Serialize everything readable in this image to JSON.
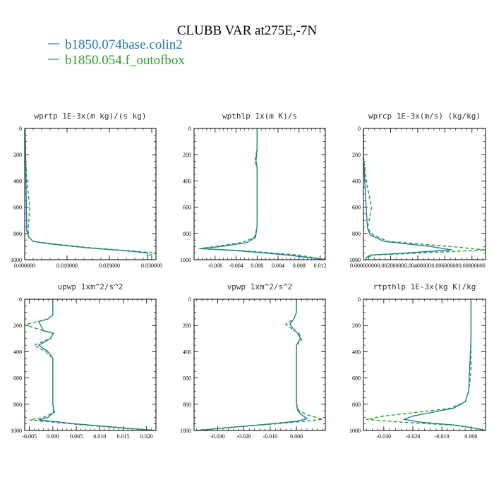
{
  "figure": {
    "title": "CLUBB VAR at275E,-7N",
    "legend": [
      {
        "name": "b1850.074base.colin2",
        "color": "#1f77b4",
        "style": "solid"
      },
      {
        "name": "b1850.054.f_outofbox",
        "color": "#2ca02c",
        "style": "dashed"
      }
    ]
  },
  "chart_data": [
    {
      "type": "line",
      "title": "wprtp  1E-3x(m kg)/(s kg)",
      "xlim": [
        0.0,
        0.031
      ],
      "ylim": [
        1000,
        0
      ],
      "xticks": [
        0.0,
        0.01,
        0.02,
        0.03
      ],
      "xtick_labels": [
        "0.000000",
        "0.010000",
        "0.020000",
        "0.030000"
      ],
      "yticks": [
        0,
        200,
        400,
        600,
        800,
        1000
      ],
      "ytick_labels": [
        "0",
        "200",
        "400",
        "600",
        "800",
        "1000"
      ],
      "series": [
        {
          "color": "#1f77b4",
          "dash": false,
          "x": [
            0.0001,
            0.0002,
            0.0003,
            0.0004,
            0.0005,
            0.001,
            0.002,
            0.006,
            0.015,
            0.025,
            0.029,
            0.029,
            0.029
          ],
          "y": [
            0,
            200,
            400,
            600,
            780,
            830,
            860,
            880,
            910,
            935,
            950,
            970,
            1000
          ]
        },
        {
          "color": "#2ca02c",
          "dash": true,
          "x": [
            0.0001,
            0.0002,
            0.0005,
            0.0012,
            0.0008,
            0.001,
            0.002,
            0.007,
            0.016,
            0.026,
            0.031,
            0.029,
            0.029
          ],
          "y": [
            0,
            200,
            400,
            600,
            780,
            830,
            860,
            880,
            910,
            935,
            950,
            970,
            1000
          ]
        }
      ]
    },
    {
      "type": "line",
      "title": "wpthlp  1x(m K)/s",
      "xlim": [
        -0.012,
        0.013
      ],
      "ylim": [
        1000,
        0
      ],
      "xticks": [
        -0.008,
        -0.004,
        0.0,
        0.004,
        0.008,
        0.012
      ],
      "xtick_labels": [
        "-0.008",
        "-0.004",
        "0.000",
        "0.004",
        "0.008",
        "0.012"
      ],
      "yticks": [
        0,
        200,
        400,
        600,
        800,
        1000
      ],
      "ytick_labels": [
        "0",
        "200",
        "400",
        "600",
        "800",
        "1000"
      ],
      "series": [
        {
          "color": "#1f77b4",
          "dash": false,
          "x": [
            0.0,
            0.0,
            -0.0002,
            0.0,
            0.0,
            0.0,
            -0.0003,
            -0.002,
            -0.007,
            -0.011,
            -0.004,
            0.006,
            0.013
          ],
          "y": [
            0,
            150,
            250,
            300,
            500,
            750,
            830,
            870,
            900,
            915,
            930,
            965,
            1000
          ]
        },
        {
          "color": "#2ca02c",
          "dash": true,
          "x": [
            0.0,
            0.0,
            -0.0004,
            0.0,
            0.0,
            0.0,
            -0.0005,
            -0.003,
            -0.008,
            -0.011,
            -0.003,
            0.008,
            0.013
          ],
          "y": [
            0,
            150,
            250,
            300,
            500,
            750,
            830,
            870,
            900,
            915,
            930,
            965,
            1000
          ]
        }
      ]
    },
    {
      "type": "line",
      "title": "wprcp  1E-3x(m/s) (kg/kg)",
      "xlim": [
        0.0,
        0.009
      ],
      "ylim": [
        1000,
        0
      ],
      "xticks": [
        0.0,
        0.002,
        0.004,
        0.006,
        0.008
      ],
      "xtick_labels": [
        "0.00000000",
        "0.00200000",
        "0.00400000",
        "0.00600000",
        "0.00800000"
      ],
      "yticks": [
        0,
        200,
        400,
        600,
        800,
        1000
      ],
      "ytick_labels": [
        "0",
        "200",
        "400",
        "600",
        "800",
        "1000"
      ],
      "series": [
        {
          "color": "#1f77b4",
          "dash": false,
          "x": [
            0.0,
            0.0,
            0.0001,
            0.0002,
            0.0003,
            0.0005,
            0.0015,
            0.005,
            0.0065,
            0.003,
            0.0005,
            0.0002,
            0.0002
          ],
          "y": [
            0,
            200,
            400,
            600,
            760,
            810,
            860,
            900,
            925,
            950,
            965,
            985,
            1000
          ]
        },
        {
          "color": "#2ca02c",
          "dash": true,
          "x": [
            0.0,
            0.0,
            0.0002,
            0.0006,
            0.0003,
            0.0007,
            0.0018,
            0.0065,
            0.009,
            0.004,
            0.0007,
            0.0003,
            0.0002
          ],
          "y": [
            0,
            200,
            400,
            600,
            760,
            810,
            860,
            900,
            925,
            950,
            965,
            985,
            1000
          ]
        }
      ]
    },
    {
      "type": "line",
      "title": "upwp   1xm^2/s^2",
      "xlim": [
        -0.006,
        0.022
      ],
      "ylim": [
        1000,
        0
      ],
      "xticks": [
        -0.005,
        0.0,
        0.005,
        0.01,
        0.015,
        0.02
      ],
      "xtick_labels": [
        "-0.005",
        "0.000",
        "0.005",
        "0.010",
        "0.015",
        "0.020"
      ],
      "yticks": [
        0,
        200,
        400,
        600,
        800,
        1000
      ],
      "ytick_labels": [
        "0",
        "200",
        "400",
        "600",
        "800",
        "1000"
      ],
      "series": [
        {
          "color": "#1f77b4",
          "dash": false,
          "x": [
            0.0,
            0.0,
            -0.001,
            -0.003,
            -0.002,
            0.0001,
            -0.0005,
            -0.003,
            -0.001,
            0.0,
            0.0,
            0.0,
            0.0,
            0.0002,
            -0.001,
            -0.003,
            0.005,
            0.015,
            0.022
          ],
          "y": [
            0,
            120,
            150,
            170,
            240,
            260,
            300,
            350,
            400,
            450,
            500,
            600,
            800,
            860,
            900,
            920,
            950,
            980,
            1000
          ]
        },
        {
          "color": "#2ca02c",
          "dash": true,
          "x": [
            0.0,
            0.0,
            -0.001,
            -0.006,
            -0.002,
            0.0002,
            -0.0006,
            -0.004,
            -0.0015,
            0.0,
            0.0,
            0.0,
            0.0,
            0.0004,
            -0.002,
            -0.005,
            0.004,
            0.014,
            0.022
          ],
          "y": [
            0,
            120,
            150,
            195,
            240,
            260,
            300,
            350,
            400,
            450,
            500,
            600,
            800,
            860,
            900,
            920,
            950,
            980,
            1000
          ]
        }
      ]
    },
    {
      "type": "line",
      "title": "vpwp   1xm^2/s^2",
      "xlim": [
        -0.039,
        0.011
      ],
      "ylim": [
        1000,
        0
      ],
      "xticks": [
        -0.03,
        -0.02,
        -0.01,
        0.0
      ],
      "xtick_labels": [
        "-0.030",
        "-0.020",
        "-0.010",
        "0.000"
      ],
      "yticks": [
        0,
        200,
        400,
        600,
        800,
        1000
      ],
      "ytick_labels": [
        "0",
        "200",
        "400",
        "600",
        "800",
        "1000"
      ],
      "series": [
        {
          "color": "#1f77b4",
          "dash": false,
          "x": [
            0.0,
            0.0,
            -0.001,
            -0.0025,
            -0.001,
            0.0005,
            0.0015,
            0.0,
            0.0,
            0.0,
            0.0,
            0.0,
            0.0005,
            0.002,
            0.004,
            0.0,
            -0.01,
            -0.025,
            -0.038
          ],
          "y": [
            0,
            100,
            150,
            190,
            230,
            260,
            300,
            350,
            420,
            500,
            600,
            800,
            850,
            880,
            910,
            930,
            950,
            975,
            1000
          ]
        },
        {
          "color": "#2ca02c",
          "dash": true,
          "x": [
            0.0,
            0.0,
            -0.001,
            -0.004,
            -0.0015,
            0.001,
            0.002,
            0.0,
            0.0,
            0.0,
            0.0,
            0.0,
            0.001,
            0.004,
            0.01,
            0.003,
            -0.008,
            -0.024,
            -0.038
          ],
          "y": [
            0,
            100,
            150,
            190,
            230,
            260,
            310,
            350,
            420,
            500,
            600,
            800,
            850,
            880,
            915,
            930,
            950,
            975,
            1000
          ]
        }
      ]
    },
    {
      "type": "line",
      "title": "rtpthlp  1E-3x(kg K)/kg",
      "xlim": [
        -0.037,
        0.005
      ],
      "ylim": [
        1000,
        0
      ],
      "xticks": [
        -0.03,
        -0.02,
        -0.01,
        0.0
      ],
      "xtick_labels": [
        "-0.030",
        "-0.020",
        "-0.010",
        "0.000"
      ],
      "yticks": [
        0,
        200,
        400,
        600,
        800,
        1000
      ],
      "ytick_labels": [
        "0",
        "200",
        "400",
        "600",
        "800",
        "1000"
      ],
      "series": [
        {
          "color": "#1f77b4",
          "dash": false,
          "x": [
            0.0,
            0.0,
            -0.0003,
            -0.0005,
            -0.0008,
            -0.002,
            -0.006,
            -0.013,
            -0.02,
            -0.023,
            -0.018,
            -0.005,
            0.002,
            0.005
          ],
          "y": [
            0,
            300,
            450,
            550,
            700,
            780,
            830,
            860,
            890,
            915,
            935,
            960,
            985,
            1000
          ]
        },
        {
          "color": "#2ca02c",
          "dash": true,
          "x": [
            0.0,
            0.0,
            0.0,
            0.0,
            -0.0008,
            -0.002,
            -0.007,
            -0.018,
            -0.03,
            -0.036,
            -0.025,
            -0.006,
            0.002,
            0.005
          ],
          "y": [
            0,
            300,
            450,
            550,
            700,
            780,
            830,
            860,
            890,
            915,
            935,
            960,
            985,
            1000
          ]
        }
      ]
    }
  ]
}
